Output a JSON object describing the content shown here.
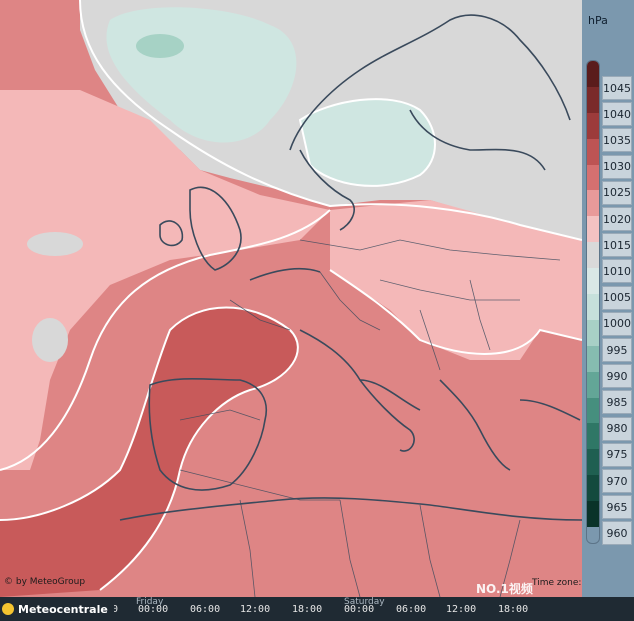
{
  "legend": {
    "unit": "hPa",
    "levels": [
      "1045",
      "1040",
      "1035",
      "1030",
      "1025",
      "1020",
      "1015",
      "1010",
      "1005",
      "1000",
      "995",
      "990",
      "985",
      "980",
      "975",
      "970",
      "965",
      "960"
    ],
    "colors": [
      "#5a1c1c",
      "#7a2a2a",
      "#9c3b3b",
      "#bd5454",
      "#d57070",
      "#e89a9a",
      "#f3c2c2",
      "#d9d9d9",
      "#d9e8e6",
      "#c6e0db",
      "#a8d0c6",
      "#86bcb0",
      "#63a697",
      "#468f7e",
      "#2f7766",
      "#1f5f51",
      "#134a3e",
      "#0a3329"
    ]
  },
  "map": {
    "colors": {
      "high_dark": "#c85a5a",
      "high_mid": "#de8585",
      "high_light": "#f4b8b8",
      "neutral": "#d8d8d8",
      "low": "#cfe6e1",
      "low_core": "#a6d2c5",
      "coast": "#3a4a5c",
      "isobar": "#ffffff"
    }
  },
  "credit": "© by MeteoGroup",
  "timestamp": "Time zone: Etc/UTC",
  "watermark": "NO.1视频",
  "brand": "Meteocentrale",
  "timeline": {
    "days": [
      {
        "label": "Friday"
      },
      {
        "label": "Saturday"
      }
    ],
    "hours": [
      "00:00",
      "06:00",
      "12:00",
      "18:00",
      "00:00",
      "06:00",
      "12:00",
      "18:00"
    ],
    "lead_hour": ":00"
  }
}
